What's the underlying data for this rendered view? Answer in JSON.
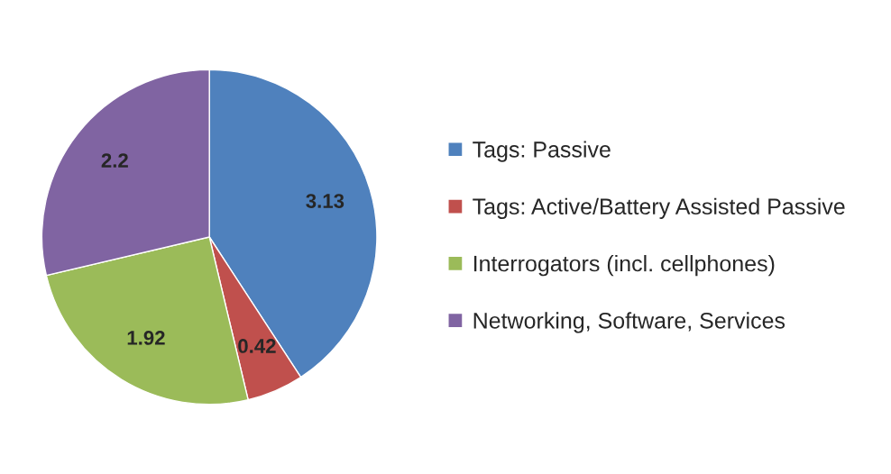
{
  "chart_data": {
    "type": "pie",
    "categories": [
      "Tags: Passive",
      "Tags: Active/Battery Assisted Passive",
      "Interrogators (incl. cellphones)",
      "Networking, Software, Services"
    ],
    "values": [
      3.13,
      0.42,
      1.92,
      2.2
    ],
    "colors": [
      "#4f81bd",
      "#c0504d",
      "#9bbb59",
      "#8064a2"
    ],
    "data_labels": true,
    "legend": "right"
  }
}
